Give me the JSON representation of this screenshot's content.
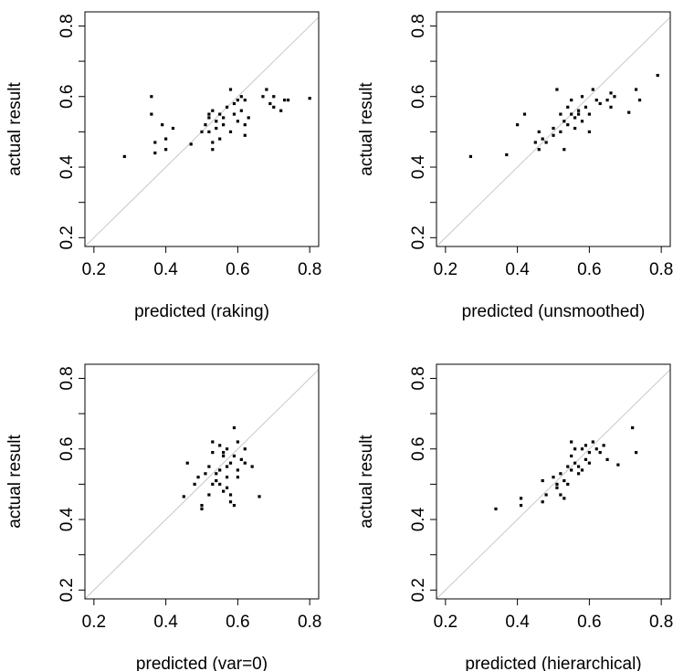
{
  "chart_data": [
    {
      "type": "scatter",
      "xlabel": "predicted (raking)",
      "ylabel": "actual result",
      "xlim": [
        0.175,
        0.825
      ],
      "ylim": [
        0.175,
        0.84
      ],
      "xticks": [
        0.2,
        0.4,
        0.6,
        0.8
      ],
      "yticks": [
        0.2,
        {
          "value": 0.3,
          "label": null
        },
        0.4,
        {
          "value": 0.5,
          "label": null
        },
        0.6,
        {
          "value": 0.7,
          "label": null
        },
        0.8
      ],
      "color": "#000000",
      "diagonal_color": "#c8c8c8",
      "x": [
        0.285,
        0.36,
        0.36,
        0.37,
        0.37,
        0.39,
        0.4,
        0.4,
        0.42,
        0.47,
        0.5,
        0.51,
        0.52,
        0.52,
        0.53,
        0.52,
        0.53,
        0.53,
        0.54,
        0.55,
        0.56,
        0.56,
        0.57,
        0.58,
        0.58,
        0.59,
        0.6,
        0.6,
        0.61,
        0.61,
        0.62,
        0.62,
        0.63,
        0.67,
        0.68,
        0.69,
        0.7,
        0.7,
        0.72,
        0.73,
        0.74,
        0.8,
        0.55,
        0.54,
        0.59,
        0.62
      ],
      "values": [
        0.43,
        0.6,
        0.55,
        0.47,
        0.44,
        0.52,
        0.48,
        0.45,
        0.51,
        0.465,
        0.5,
        0.52,
        0.54,
        0.55,
        0.56,
        0.5,
        0.47,
        0.45,
        0.53,
        0.55,
        0.52,
        0.54,
        0.57,
        0.62,
        0.5,
        0.55,
        0.59,
        0.53,
        0.56,
        0.6,
        0.52,
        0.59,
        0.54,
        0.6,
        0.62,
        0.58,
        0.6,
        0.57,
        0.56,
        0.59,
        0.59,
        0.595,
        0.48,
        0.51,
        0.58,
        0.49
      ]
    },
    {
      "type": "scatter",
      "xlabel": "predicted (unsmoothed)",
      "ylabel": "actual result",
      "xlim": [
        0.175,
        0.825
      ],
      "ylim": [
        0.175,
        0.84
      ],
      "xticks": [
        0.2,
        0.4,
        0.6,
        0.8
      ],
      "yticks": [
        0.2,
        {
          "value": 0.3,
          "label": null
        },
        0.4,
        {
          "value": 0.5,
          "label": null
        },
        0.6,
        {
          "value": 0.7,
          "label": null
        },
        0.8
      ],
      "color": "#000000",
      "diagonal_color": "#c8c8c8",
      "x": [
        0.27,
        0.37,
        0.4,
        0.42,
        0.45,
        0.46,
        0.46,
        0.47,
        0.48,
        0.5,
        0.51,
        0.52,
        0.52,
        0.53,
        0.53,
        0.54,
        0.55,
        0.55,
        0.56,
        0.56,
        0.57,
        0.58,
        0.58,
        0.59,
        0.6,
        0.6,
        0.61,
        0.62,
        0.63,
        0.65,
        0.66,
        0.66,
        0.67,
        0.71,
        0.73,
        0.74,
        0.79,
        0.5,
        0.54,
        0.57
      ],
      "values": [
        0.43,
        0.435,
        0.52,
        0.55,
        0.47,
        0.5,
        0.45,
        0.48,
        0.47,
        0.49,
        0.62,
        0.5,
        0.55,
        0.53,
        0.45,
        0.57,
        0.59,
        0.55,
        0.51,
        0.54,
        0.56,
        0.53,
        0.6,
        0.57,
        0.5,
        0.55,
        0.62,
        0.59,
        0.58,
        0.59,
        0.61,
        0.57,
        0.6,
        0.555,
        0.62,
        0.59,
        0.66,
        0.51,
        0.52,
        0.55
      ]
    },
    {
      "type": "scatter",
      "xlabel": "predicted (var=0)",
      "ylabel": "actual result",
      "xlim": [
        0.175,
        0.825
      ],
      "ylim": [
        0.175,
        0.84
      ],
      "xticks": [
        0.2,
        0.4,
        0.6,
        0.8
      ],
      "yticks": [
        0.2,
        {
          "value": 0.3,
          "label": null
        },
        0.4,
        {
          "value": 0.5,
          "label": null
        },
        0.6,
        {
          "value": 0.7,
          "label": null
        },
        0.8
      ],
      "color": "#000000",
      "diagonal_color": "#c8c8c8",
      "x": [
        0.45,
        0.46,
        0.48,
        0.49,
        0.5,
        0.5,
        0.51,
        0.52,
        0.52,
        0.53,
        0.53,
        0.53,
        0.54,
        0.54,
        0.55,
        0.55,
        0.56,
        0.56,
        0.56,
        0.57,
        0.57,
        0.57,
        0.58,
        0.58,
        0.58,
        0.59,
        0.59,
        0.59,
        0.6,
        0.6,
        0.61,
        0.62,
        0.62,
        0.64,
        0.66,
        0.55,
        0.57,
        0.6
      ],
      "values": [
        0.465,
        0.56,
        0.5,
        0.52,
        0.44,
        0.43,
        0.53,
        0.47,
        0.55,
        0.62,
        0.5,
        0.59,
        0.51,
        0.53,
        0.54,
        0.61,
        0.59,
        0.58,
        0.48,
        0.6,
        0.55,
        0.52,
        0.56,
        0.47,
        0.45,
        0.44,
        0.66,
        0.58,
        0.62,
        0.54,
        0.57,
        0.56,
        0.6,
        0.55,
        0.465,
        0.5,
        0.49,
        0.52
      ]
    },
    {
      "type": "scatter",
      "xlabel": "predicted (hierarchical)",
      "ylabel": "actual result",
      "xlim": [
        0.175,
        0.825
      ],
      "ylim": [
        0.175,
        0.84
      ],
      "xticks": [
        0.2,
        0.4,
        0.6,
        0.8
      ],
      "yticks": [
        0.2,
        {
          "value": 0.3,
          "label": null
        },
        0.4,
        {
          "value": 0.5,
          "label": null
        },
        0.6,
        {
          "value": 0.7,
          "label": null
        },
        0.8
      ],
      "color": "#000000",
      "diagonal_color": "#c8c8c8",
      "x": [
        0.34,
        0.41,
        0.41,
        0.47,
        0.47,
        0.48,
        0.5,
        0.51,
        0.51,
        0.52,
        0.52,
        0.53,
        0.53,
        0.54,
        0.54,
        0.55,
        0.55,
        0.56,
        0.56,
        0.57,
        0.57,
        0.58,
        0.58,
        0.59,
        0.6,
        0.6,
        0.61,
        0.62,
        0.63,
        0.64,
        0.65,
        0.68,
        0.72,
        0.73,
        0.55,
        0.59
      ],
      "values": [
        0.43,
        0.46,
        0.44,
        0.51,
        0.45,
        0.47,
        0.52,
        0.49,
        0.5,
        0.53,
        0.47,
        0.46,
        0.51,
        0.5,
        0.55,
        0.62,
        0.54,
        0.56,
        0.6,
        0.53,
        0.55,
        0.54,
        0.6,
        0.57,
        0.59,
        0.56,
        0.62,
        0.6,
        0.59,
        0.61,
        0.57,
        0.555,
        0.66,
        0.59,
        0.58,
        0.61
      ]
    }
  ]
}
